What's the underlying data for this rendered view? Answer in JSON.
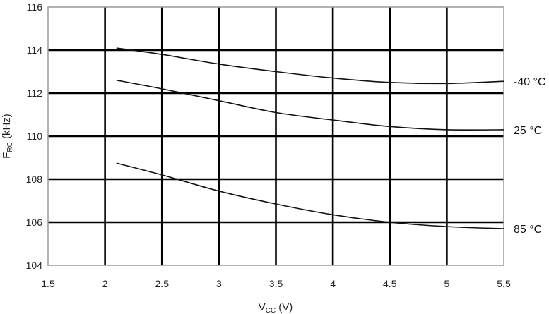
{
  "chart_data": {
    "type": "line",
    "title": "",
    "xlabel": {
      "main": "V",
      "sub": "CC",
      "unit": " (V)"
    },
    "ylabel": {
      "main": "F",
      "sub": "RC",
      "unit": " (kHz)"
    },
    "xlim": [
      1.5,
      5.5
    ],
    "ylim": [
      104,
      116
    ],
    "xticks": [
      "1.5",
      "2",
      "2.5",
      "3",
      "3.5",
      "4",
      "4.5",
      "5",
      "5.5"
    ],
    "yticks": [
      "104",
      "106",
      "108",
      "110",
      "112",
      "114",
      "116"
    ],
    "grid": true,
    "series": [
      {
        "name": "-40 °C",
        "x": [
          2.1,
          2.5,
          3.0,
          3.5,
          4.0,
          4.5,
          5.0,
          5.5
        ],
        "y": [
          114.1,
          113.8,
          113.35,
          113.0,
          112.7,
          112.5,
          112.45,
          112.55
        ]
      },
      {
        "name": "25 °C",
        "x": [
          2.1,
          2.5,
          3.0,
          3.5,
          4.0,
          4.5,
          5.0,
          5.5
        ],
        "y": [
          112.6,
          112.2,
          111.65,
          111.1,
          110.75,
          110.45,
          110.3,
          110.3
        ]
      },
      {
        "name": "85 °C",
        "x": [
          2.1,
          2.5,
          3.0,
          3.5,
          4.0,
          4.5,
          5.0,
          5.5
        ],
        "y": [
          108.75,
          108.2,
          107.45,
          106.85,
          106.35,
          106.0,
          105.8,
          105.7
        ]
      }
    ]
  }
}
